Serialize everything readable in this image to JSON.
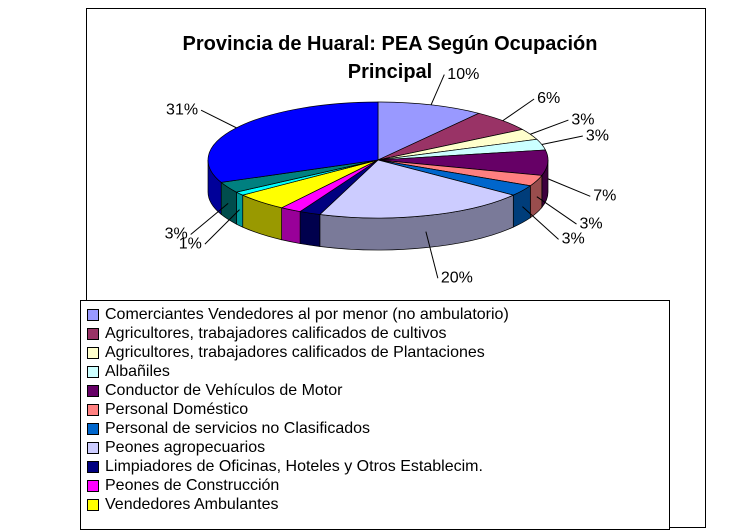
{
  "chart_data": {
    "type": "pie3d",
    "title": "Provincia de Huaral: PEA Según Ocupación Principal",
    "categories": [
      "Comerciantes Vendedores al por menor (no ambulatorio)",
      "Agricultores, trabajadores calificados de cultivos",
      "Agricultores, trabajadores calificados de Plantaciones",
      "Albañiles",
      "Conductor de Vehículos de Motor",
      "Personal Doméstico",
      "Personal de servicios no Clasificados",
      "Peones agropecuarios",
      "Limpiadores de Oficinas, Hoteles y Otros Establecim.",
      "Peones de Construcción",
      "Vendedores Ambulantes",
      null,
      null,
      null
    ],
    "values": [
      10,
      6,
      3,
      3,
      7,
      3,
      3,
      20,
      2,
      2,
      5,
      1,
      3,
      31
    ],
    "value_labels": [
      "10%",
      "6%",
      "3%",
      "3%",
      "7%",
      "3%",
      "3%",
      "20%",
      null,
      null,
      null,
      "1%",
      "3%",
      "31%"
    ],
    "colors": [
      "#9999ff",
      "#993366",
      "#ffffcc",
      "#ccffff",
      "#660066",
      "#ff8080",
      "#0066cc",
      "#ccccff",
      "#000080",
      "#ff00ff",
      "#ffff00",
      "#00ffff",
      "#008080",
      "#0000ff"
    ],
    "legend": "bottom"
  }
}
